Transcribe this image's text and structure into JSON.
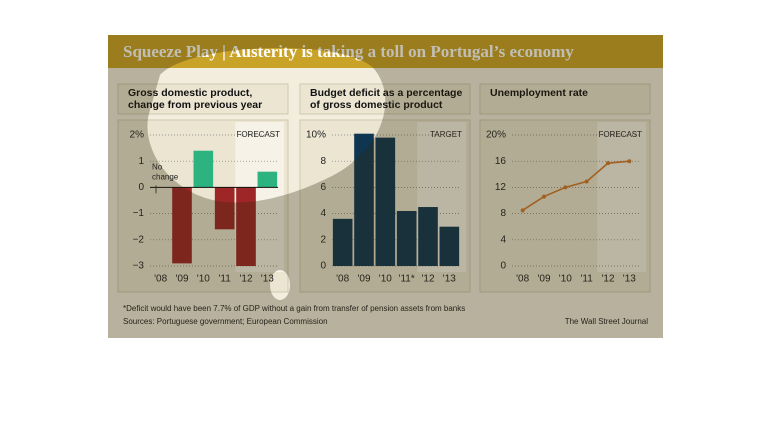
{
  "header": {
    "title": "Squeeze Play | Austerity is taking a toll on Portugal’s economy"
  },
  "chart_data": [
    {
      "type": "bar",
      "title": [
        "Gross domestic product,",
        "change from previous year"
      ],
      "categories": [
        "'08",
        "'09",
        "'10",
        "'11",
        "'12",
        "'13"
      ],
      "values": [
        0,
        -2.9,
        1.4,
        -1.6,
        -3.0,
        0.6
      ],
      "positive_color": "#2db37f",
      "negative_color": "#9e2626",
      "ylim": [
        -3,
        2
      ],
      "yticks": [
        {
          "value": 2,
          "label": "2%"
        },
        1,
        0,
        {
          "value": -1,
          "label": "−1"
        },
        {
          "value": -2,
          "label": "−2"
        },
        {
          "value": -3,
          "label": "−3"
        }
      ],
      "grid": true,
      "shade_from": "'12",
      "shade_label": "FORECAST",
      "annotation": "No change"
    },
    {
      "type": "bar",
      "title": [
        "Budget deficit as a percentage",
        "of gross domestic product"
      ],
      "categories": [
        "'08",
        "'09",
        "'10",
        "'11*",
        "'12",
        "'13"
      ],
      "values": [
        3.6,
        10.1,
        9.8,
        4.2,
        4.5,
        3.0
      ],
      "color": "#0f3550",
      "ylim": [
        0,
        10
      ],
      "yticks": [
        {
          "value": 10,
          "label": "10%"
        },
        8,
        6,
        4,
        2,
        0
      ],
      "grid": true,
      "shade_from": "'12",
      "shade_label": "TARGET"
    },
    {
      "type": "line",
      "title": [
        "Unemployment rate"
      ],
      "categories": [
        "'08",
        "'09",
        "'10",
        "'11",
        "'12",
        "'13"
      ],
      "values": [
        8.5,
        10.6,
        12.0,
        12.9,
        15.7,
        16.0
      ],
      "color": "#d2792a",
      "ylim": [
        0,
        20
      ],
      "yticks": [
        {
          "value": 20,
          "label": "20%"
        },
        16,
        12,
        8,
        4,
        0
      ],
      "grid": true,
      "shade_from": "'12",
      "shade_label": "FORECAST"
    }
  ],
  "footnote": "*Deficit would have been 7.7% of GDP without a gain from transfer of pension assets from banks",
  "sources": "Sources: Portuguese government; European Commission",
  "credit": "The Wall Street Journal"
}
